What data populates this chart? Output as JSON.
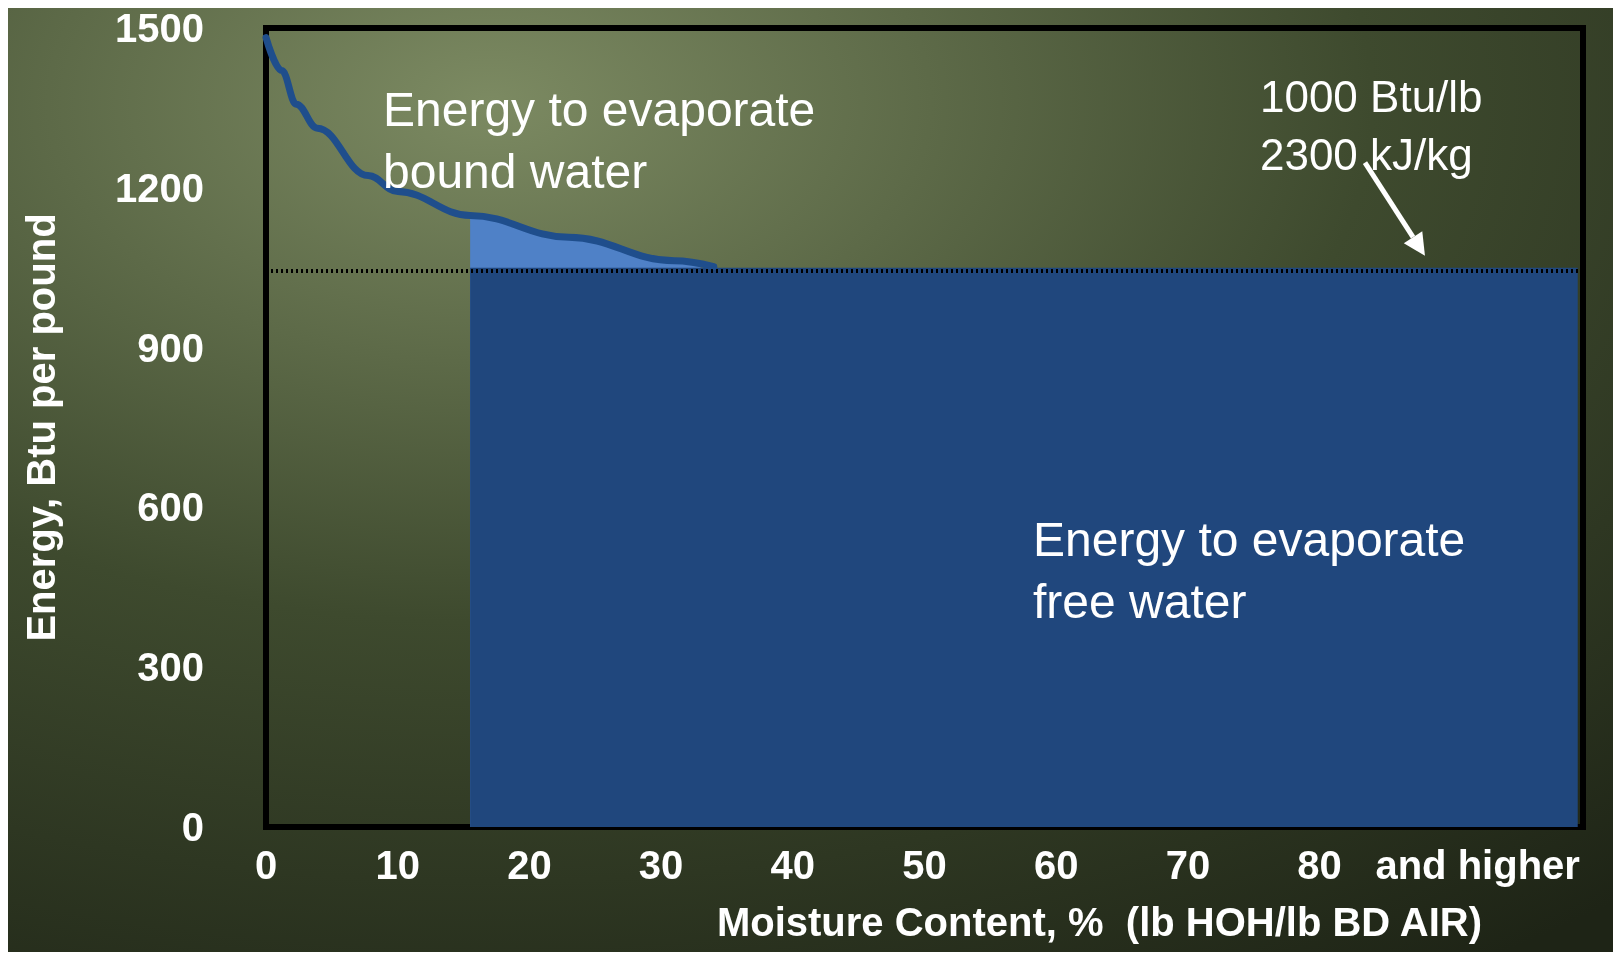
{
  "chart_data": {
    "type": "area",
    "xlabel": "Moisture Content, %  (lb HOH/lb BD AIR)",
    "ylabel": "Energy, Btu per pound",
    "xlim": [
      0,
      100
    ],
    "ylim": [
      0,
      1500
    ],
    "xticks": [
      0,
      10,
      20,
      30,
      40,
      50,
      60,
      70,
      80,
      {
        "value": 92,
        "label": "and higher"
      }
    ],
    "yticks": [
      0,
      300,
      600,
      900,
      1200,
      1500
    ],
    "series": [
      {
        "color": "#4f81c7",
        "x": [
          15.5,
          23,
          31,
          33
        ],
        "values": [
          1148,
          1107,
          1063,
          1052
        ]
      },
      {
        "color": "#20477d",
        "x": [
          15.5,
          99.6
        ],
        "values": [
          1050,
          1050
        ]
      },
      {
        "type": "line",
        "color": "#1f4e8c",
        "x": [
          0,
          1.2,
          2.3,
          3.9,
          7.75,
          10,
          15.5,
          23,
          31,
          34
        ],
        "values": [
          1482,
          1420,
          1357,
          1312,
          1223,
          1193,
          1148,
          1107,
          1063,
          1052
        ]
      }
    ],
    "ref_lines": [
      {
        "axis": "y",
        "value": 1045,
        "color": "#000000",
        "line_style": "dotted"
      }
    ],
    "annotations": [
      "Energy to evaporate\nbound water",
      "Energy to evaporate\nfree water",
      {
        "text": "1000 Btu/lb\n2300 kJ/kg",
        "x": 88,
        "y": 1050
      }
    ],
    "grid": false
  }
}
